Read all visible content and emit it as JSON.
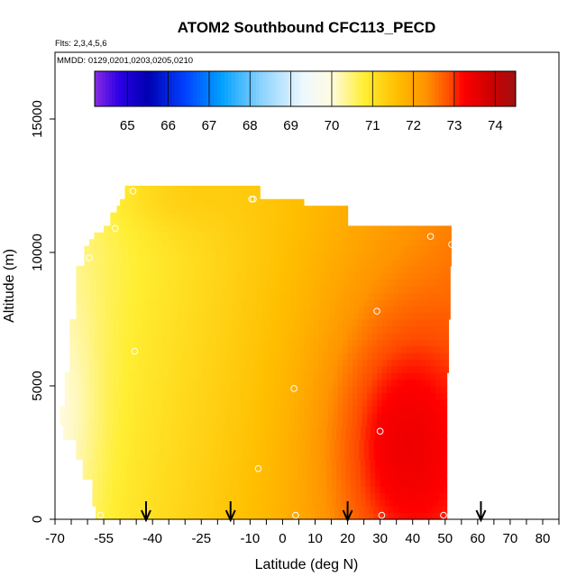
{
  "chart_data": {
    "type": "heatmap",
    "title": "ATOM2 Southbound CFC113_PECD",
    "flights_text": "Flts: 2,3,4,5,6",
    "mmdd_text": "MMDD: 0129,0201,0203,0205,0210",
    "xlabel": "Latitude (deg N)",
    "ylabel": "Altitude (m)",
    "xlim": [
      -70,
      85
    ],
    "ylim": [
      0,
      17500
    ],
    "x_ticks": [
      -70,
      -55,
      -40,
      -25,
      -10,
      0,
      10,
      20,
      30,
      40,
      50,
      60,
      70,
      80
    ],
    "x_minor_ticks": [
      -65,
      -60,
      -50,
      -45,
      -35,
      -30,
      -20,
      -15,
      -5,
      5,
      15,
      25,
      35,
      45,
      55,
      65,
      75,
      85
    ],
    "y_ticks": [
      0,
      5000,
      10000,
      15000
    ],
    "colorbar": {
      "min": 64.2,
      "max": 74.5,
      "ticks": [
        65,
        66,
        67,
        68,
        69,
        70,
        71,
        72,
        73,
        74
      ],
      "stops": [
        {
          "v": 64.2,
          "c": "#8a2be2"
        },
        {
          "v": 64.8,
          "c": "#2b00e6"
        },
        {
          "v": 65.5,
          "c": "#0000b0"
        },
        {
          "v": 66.4,
          "c": "#0040ff"
        },
        {
          "v": 67.3,
          "c": "#00a0ff"
        },
        {
          "v": 68.3,
          "c": "#8fd4ff"
        },
        {
          "v": 69.3,
          "c": "#eef8ff"
        },
        {
          "v": 70.0,
          "c": "#fffbe0"
        },
        {
          "v": 70.8,
          "c": "#ffee33"
        },
        {
          "v": 71.6,
          "c": "#ffbe00"
        },
        {
          "v": 72.3,
          "c": "#ff9300"
        },
        {
          "v": 72.9,
          "c": "#ff4a00"
        },
        {
          "v": 73.2,
          "c": "#ff0000"
        },
        {
          "v": 73.9,
          "c": "#cc0000"
        },
        {
          "v": 74.5,
          "c": "#a01010"
        }
      ]
    },
    "field": {
      "description": "interpolated mixing ratio (ppt) over latitude/altitude",
      "base": 71.75,
      "lat_coef": 0.017,
      "alt_coef_per_km": 0.02,
      "hotspot": {
        "lat": 35,
        "alt": 3000,
        "amp": 1.1,
        "lat_scale": 22,
        "alt_scale": 5000
      },
      "cool_spot": {
        "lat": -68,
        "alt": 3500,
        "amp": 0.5,
        "lat_scale": 12,
        "alt_scale": 5000
      },
      "top_bump": {
        "lat": -35,
        "alt": 12300,
        "amp": 0.35,
        "lat_scale": 20,
        "alt_scale": 1500
      }
    },
    "coverage_profile": [
      {
        "alt": 0,
        "lat_min": -57.5,
        "lat_max": 50.5
      },
      {
        "alt": 600,
        "lat_min": -58.5,
        "lat_max": 50.5
      },
      {
        "alt": 1400,
        "lat_min": -61.5,
        "lat_max": 50.5
      },
      {
        "alt": 2200,
        "lat_min": -63.5,
        "lat_max": 50.5
      },
      {
        "alt": 3000,
        "lat_min": -67.5,
        "lat_max": 50.5
      },
      {
        "alt": 3500,
        "lat_min": -68.5,
        "lat_max": 50.5
      },
      {
        "alt": 4200,
        "lat_min": -67.0,
        "lat_max": 50.5
      },
      {
        "alt": 5500,
        "lat_min": -65.5,
        "lat_max": 51.0
      },
      {
        "alt": 7500,
        "lat_min": -63.5,
        "lat_max": 51.5
      },
      {
        "alt": 9500,
        "lat_min": -61.0,
        "lat_max": 51.8
      },
      {
        "alt": 10200,
        "lat_min": -59.5,
        "lat_max": 51.8
      },
      {
        "alt": 10600,
        "lat_min": -58.0,
        "lat_max": 51.8
      },
      {
        "alt": 10800,
        "lat_min": -55.0,
        "lat_max": 51.8
      },
      {
        "alt": 10900,
        "lat_min": -54.5,
        "lat_max": 20.0
      },
      {
        "alt": 11000,
        "lat_min": -53.0,
        "lat_max": 20.0
      },
      {
        "alt": 11400,
        "lat_min": -51.0,
        "lat_max": 20.0
      },
      {
        "alt": 11800,
        "lat_min": -50.0,
        "lat_max": 6.5
      },
      {
        "alt": 12000,
        "lat_min": -48.5,
        "lat_max": -7.0
      },
      {
        "alt": 12500,
        "lat_min": -48.0,
        "lat_max": -7.0
      }
    ],
    "sample_points": [
      {
        "lat": -46,
        "alt": 12300
      },
      {
        "lat": -9.5,
        "alt": 12000
      },
      {
        "lat": -9.0,
        "alt": 12000
      },
      {
        "lat": -51.5,
        "alt": 10900
      },
      {
        "lat": 45.5,
        "alt": 10600
      },
      {
        "lat": 52,
        "alt": 10300
      },
      {
        "lat": -59.5,
        "alt": 9800
      },
      {
        "lat": 29,
        "alt": 7800
      },
      {
        "lat": -45.5,
        "alt": 6300
      },
      {
        "lat": 3.5,
        "alt": 4900
      },
      {
        "lat": -68.5,
        "alt": 3400
      },
      {
        "lat": 30,
        "alt": 3300
      },
      {
        "lat": -7.5,
        "alt": 1900
      },
      {
        "lat": -56,
        "alt": 150
      },
      {
        "lat": 4,
        "alt": 150
      },
      {
        "lat": 30.5,
        "alt": 150
      },
      {
        "lat": 49.5,
        "alt": 150
      }
    ],
    "arrow_latitudes": [
      -42,
      -16,
      20,
      61
    ]
  }
}
